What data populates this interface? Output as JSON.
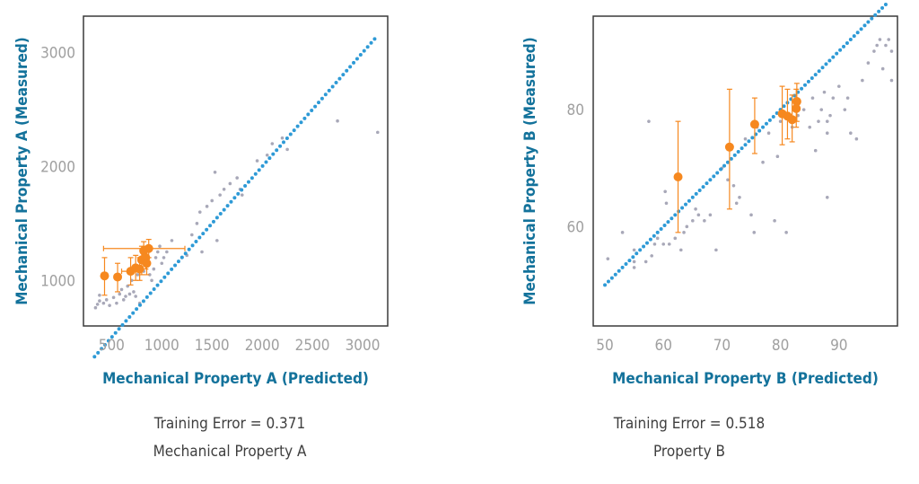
{
  "colors": {
    "diagonal": "#2e9ad6",
    "training_points": "#a8a8b8",
    "highlight": "#f6881f",
    "axis_title": "#13729b",
    "tick_label": "#a0a0a0",
    "frame": "#3a3a3a"
  },
  "chart_data": [
    {
      "type": "scatter",
      "xlabel": "Mechanical Property A (Predicted)",
      "ylabel": "Mechanical Property A  (Measured)",
      "caption_line1": "Training Error = 0.371",
      "caption_line2": "Mechanical Property A",
      "xlim": [
        220,
        3250
      ],
      "ylim": [
        600,
        3320
      ],
      "xticks": [
        500,
        1000,
        1500,
        2000,
        2500,
        3000
      ],
      "yticks": [
        1000,
        2000,
        3000
      ],
      "diagonal": [
        330,
        3120
      ],
      "training_points": [
        [
          340,
          760
        ],
        [
          360,
          790
        ],
        [
          380,
          820
        ],
        [
          380,
          870
        ],
        [
          420,
          800
        ],
        [
          450,
          830
        ],
        [
          480,
          780
        ],
        [
          520,
          850
        ],
        [
          550,
          800
        ],
        [
          580,
          880
        ],
        [
          600,
          920
        ],
        [
          620,
          830
        ],
        [
          640,
          860
        ],
        [
          660,
          950
        ],
        [
          680,
          880
        ],
        [
          700,
          1000
        ],
        [
          720,
          900
        ],
        [
          740,
          860
        ],
        [
          760,
          1050
        ],
        [
          780,
          800
        ],
        [
          800,
          1100
        ],
        [
          820,
          1080
        ],
        [
          850,
          1150
        ],
        [
          880,
          1050
        ],
        [
          900,
          1000
        ],
        [
          920,
          1100
        ],
        [
          940,
          1200
        ],
        [
          960,
          1250
        ],
        [
          980,
          1300
        ],
        [
          1000,
          1150
        ],
        [
          1020,
          1200
        ],
        [
          1050,
          1250
        ],
        [
          1100,
          1350
        ],
        [
          1200,
          1200
        ],
        [
          1250,
          1220
        ],
        [
          1300,
          1400
        ],
        [
          1350,
          1500
        ],
        [
          1380,
          1600
        ],
        [
          1400,
          1250
        ],
        [
          1450,
          1650
        ],
        [
          1500,
          1700
        ],
        [
          1530,
          1950
        ],
        [
          1550,
          1350
        ],
        [
          1580,
          1750
        ],
        [
          1620,
          1800
        ],
        [
          1680,
          1850
        ],
        [
          1750,
          1900
        ],
        [
          1780,
          1800
        ],
        [
          1800,
          1750
        ],
        [
          1950,
          2050
        ],
        [
          2050,
          2100
        ],
        [
          2100,
          2200
        ],
        [
          2200,
          2250
        ],
        [
          2250,
          2150
        ],
        [
          2750,
          2400
        ],
        [
          3150,
          2300
        ]
      ],
      "highlight_points": [
        {
          "x": 430,
          "y": 1040,
          "xerr": [
            0,
            0
          ],
          "yerr": [
            870,
            1200
          ]
        },
        {
          "x": 560,
          "y": 1030,
          "xerr": [
            0,
            0
          ],
          "yerr": [
            900,
            1150
          ]
        },
        {
          "x": 690,
          "y": 1080,
          "xerr": [
            600,
            780
          ],
          "yerr": [
            960,
            1200
          ]
        },
        {
          "x": 740,
          "y": 1110,
          "xerr": [
            0,
            0
          ],
          "yerr": [
            1000,
            1220
          ]
        },
        {
          "x": 780,
          "y": 1100,
          "xerr": [
            0,
            0
          ],
          "yerr": [
            1000,
            1200
          ]
        },
        {
          "x": 800,
          "y": 1180,
          "xerr": [
            0,
            0
          ],
          "yerr": [
            1050,
            1300
          ]
        },
        {
          "x": 820,
          "y": 1260,
          "xerr": [
            0,
            0
          ],
          "yerr": [
            1170,
            1340
          ]
        },
        {
          "x": 840,
          "y": 1200,
          "xerr": [
            0,
            0
          ],
          "yerr": [
            1100,
            1300
          ]
        },
        {
          "x": 850,
          "y": 1150,
          "xerr": [
            0,
            0
          ],
          "yerr": [
            1050,
            1260
          ]
        },
        {
          "x": 870,
          "y": 1280,
          "xerr": [
            420,
            1230
          ],
          "yerr": [
            1200,
            1360
          ]
        }
      ]
    },
    {
      "type": "scatter",
      "xlabel": "Mechanical Property B (Predicted)",
      "ylabel": "Mechanical Property B  (Measured)",
      "caption_line1": "Training Error = 0.518",
      "caption_line2": "Property B",
      "xlim": [
        48,
        100
      ],
      "ylim": [
        43,
        96
      ],
      "xticks": [
        50,
        60,
        70,
        80,
        90
      ],
      "yticks": [
        60,
        80
      ],
      "diagonal": [
        50,
        98
      ],
      "training_points": [
        [
          50.5,
          54.5
        ],
        [
          53,
          59
        ],
        [
          55,
          53
        ],
        [
          55,
          54
        ],
        [
          55,
          56
        ],
        [
          57,
          54
        ],
        [
          57.5,
          78
        ],
        [
          58,
          55
        ],
        [
          58.5,
          57
        ],
        [
          59,
          58
        ],
        [
          60,
          57
        ],
        [
          60.3,
          66
        ],
        [
          60.5,
          64
        ],
        [
          61,
          57
        ],
        [
          62,
          58
        ],
        [
          63,
          56
        ],
        [
          63.5,
          59
        ],
        [
          64,
          60
        ],
        [
          65,
          61
        ],
        [
          65.5,
          63
        ],
        [
          66,
          62
        ],
        [
          67,
          61
        ],
        [
          68,
          62
        ],
        [
          69,
          56
        ],
        [
          70,
          70
        ],
        [
          71,
          68
        ],
        [
          72,
          67
        ],
        [
          72.5,
          64
        ],
        [
          73,
          65
        ],
        [
          74,
          75
        ],
        [
          75,
          62
        ],
        [
          75.5,
          59
        ],
        [
          76,
          77
        ],
        [
          77,
          71
        ],
        [
          78,
          76
        ],
        [
          79,
          61
        ],
        [
          79.5,
          72
        ],
        [
          80,
          78
        ],
        [
          81,
          59
        ],
        [
          82,
          77
        ],
        [
          83,
          79
        ],
        [
          84,
          80
        ],
        [
          85,
          77
        ],
        [
          85.5,
          82
        ],
        [
          86,
          73
        ],
        [
          86.5,
          78
        ],
        [
          87,
          80
        ],
        [
          87.5,
          83
        ],
        [
          88,
          65
        ],
        [
          88,
          76
        ],
        [
          88,
          78
        ],
        [
          88.5,
          79
        ],
        [
          89,
          82
        ],
        [
          90,
          84
        ],
        [
          91,
          80
        ],
        [
          91.5,
          82
        ],
        [
          92,
          76
        ],
        [
          93,
          75
        ],
        [
          94,
          85
        ],
        [
          95,
          88
        ],
        [
          96,
          90
        ],
        [
          96.5,
          91
        ],
        [
          97,
          92
        ],
        [
          97.5,
          87
        ],
        [
          98,
          91
        ],
        [
          98.5,
          92
        ],
        [
          99,
          90
        ],
        [
          99,
          85
        ]
      ],
      "highlight_points": [
        {
          "x": 62.5,
          "y": 68.5,
          "xerr": [
            0,
            0
          ],
          "yerr": [
            59,
            78
          ]
        },
        {
          "x": 71.3,
          "y": 73.6,
          "xerr": [
            0,
            0
          ],
          "yerr": [
            63,
            83.5
          ]
        },
        {
          "x": 75.6,
          "y": 77.5,
          "xerr": [
            0,
            0
          ],
          "yerr": [
            72.5,
            82
          ]
        },
        {
          "x": 80.3,
          "y": 79.3,
          "xerr": [
            0,
            0
          ],
          "yerr": [
            74,
            84
          ]
        },
        {
          "x": 81.2,
          "y": 78.9,
          "xerr": [
            0,
            0
          ],
          "yerr": [
            75,
            83.5
          ]
        },
        {
          "x": 82,
          "y": 78.3,
          "xerr": [
            0,
            0
          ],
          "yerr": [
            74.5,
            82.5
          ]
        },
        {
          "x": 82.7,
          "y": 80.2,
          "xerr": [
            0,
            0
          ],
          "yerr": [
            77,
            83.5
          ]
        },
        {
          "x": 82.8,
          "y": 81.4,
          "xerr": [
            0,
            0
          ],
          "yerr": [
            78,
            84.5
          ]
        }
      ]
    }
  ]
}
